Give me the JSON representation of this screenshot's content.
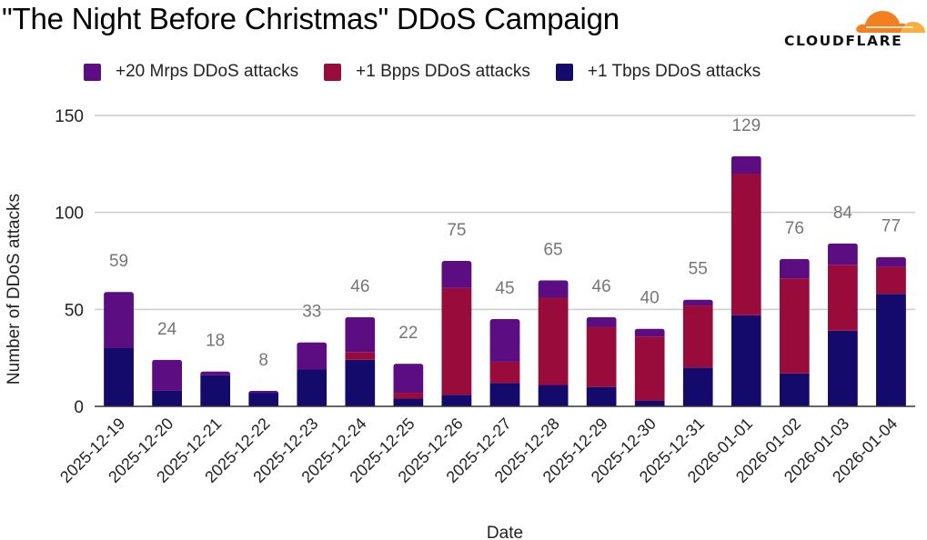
{
  "header": {
    "title": "\"The Night Before Christmas\" DDoS Campaign",
    "logo_text": "CLOUDFLARE"
  },
  "chart_data": {
    "type": "bar",
    "stacked": true,
    "title": "\"The Night Before Christmas\" DDoS Campaign",
    "xlabel": "Date",
    "ylabel": "Number of DDoS attacks",
    "ylim": [
      0,
      150
    ],
    "yticks": [
      0,
      50,
      100,
      150
    ],
    "grid": true,
    "legend_position": "top",
    "categories": [
      "2025-12-19",
      "2025-12-20",
      "2025-12-21",
      "2025-12-22",
      "2025-12-23",
      "2025-12-24",
      "2025-12-25",
      "2025-12-26",
      "2025-12-27",
      "2025-12-28",
      "2025-12-29",
      "2025-12-30",
      "2025-12-31",
      "2026-01-01",
      "2026-01-02",
      "2026-01-03",
      "2026-01-04"
    ],
    "series": [
      {
        "name": "+1 Tbps DDoS attacks",
        "color": "#140a6b",
        "values": [
          30,
          8,
          16,
          7,
          19,
          24,
          4,
          6,
          12,
          11,
          10,
          3,
          20,
          47,
          17,
          39,
          58
        ]
      },
      {
        "name": "+1 Bpps DDoS attacks",
        "color": "#990b3a",
        "values": [
          0,
          0,
          0,
          0,
          0,
          4,
          3,
          55,
          11,
          45,
          31,
          33,
          32,
          73,
          49,
          34,
          14
        ]
      },
      {
        "name": "+20 Mrps DDoS attacks",
        "color": "#5c0d82",
        "values": [
          29,
          16,
          2,
          1,
          14,
          18,
          15,
          14,
          22,
          9,
          5,
          4,
          3,
          9,
          10,
          11,
          5
        ]
      }
    ],
    "totals": [
      59,
      24,
      18,
      8,
      33,
      46,
      22,
      75,
      45,
      65,
      46,
      40,
      55,
      129,
      76,
      84,
      77
    ],
    "legend_order": [
      "+20 Mrps DDoS attacks",
      "+1 Bpps DDoS attacks",
      "+1 Tbps DDoS attacks"
    ]
  },
  "colors": {
    "mrps": "#5c0d82",
    "bpps": "#990b3a",
    "tbps": "#140a6b",
    "total_label": "#757575",
    "gridline": "#cccccc",
    "logo_orange": "#f38020",
    "logo_orange_light": "#faae40"
  }
}
